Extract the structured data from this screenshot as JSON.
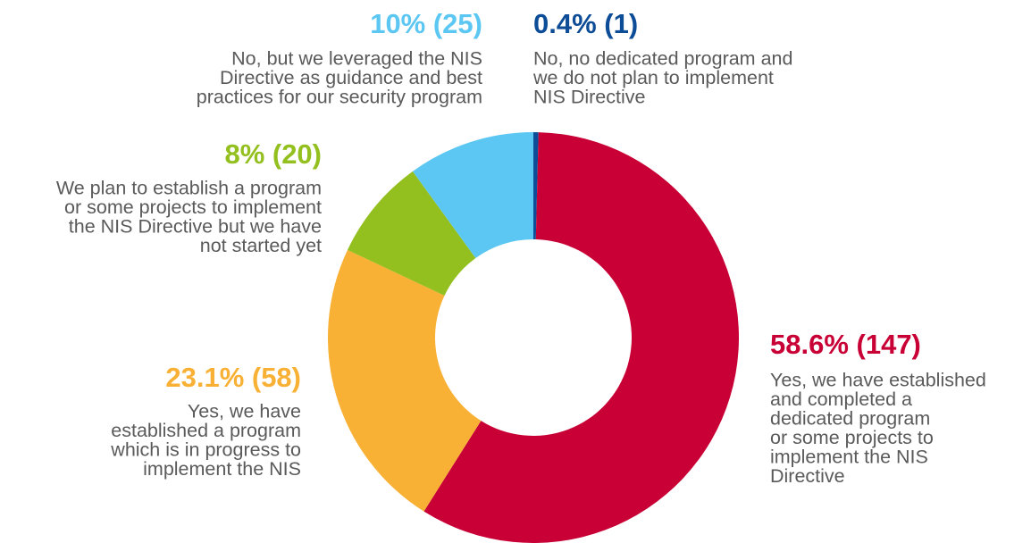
{
  "chart_data": {
    "type": "donut",
    "categories": [
      [
        "No, no dedicated program and",
        "we do not plan to implement",
        "NIS Directive"
      ],
      [
        "Yes, we have established",
        "and completed a",
        "dedicated program",
        "or some projects to",
        "implement the NIS",
        "Directive"
      ],
      [
        "Yes, we have",
        "established a program",
        "which is in progress to",
        "implement the NIS"
      ],
      [
        "We plan to establish a program",
        "or some projects to implement",
        "the NIS Directive but we have",
        "not started yet"
      ],
      [
        "No, but we leveraged the NIS",
        "Directive as guidance and best",
        "practices for our security program"
      ]
    ],
    "values": [
      0.4,
      58.6,
      23.1,
      8,
      10
    ],
    "value_labels": [
      "0.4% (1)",
      "58.6% (147)",
      "23.1% (58)",
      "8% (20)",
      "10% (25)"
    ],
    "colors": [
      "#0d4c96",
      "#c80036",
      "#f8b035",
      "#93c01f",
      "#5cc7f2"
    ]
  }
}
